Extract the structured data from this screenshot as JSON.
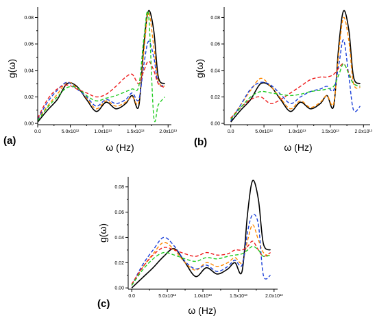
{
  "chart_data": [
    {
      "type": "line",
      "panel_label": "(a)",
      "xlabel": "ω (Hz)",
      "ylabel": "g(ω)",
      "xlim": [
        0,
        20500000000000.0
      ],
      "ylim": [
        -0.001,
        0.088
      ],
      "x_ticks": [
        {
          "value": 0,
          "label": "0.0"
        },
        {
          "value": 5000000000000.0,
          "label": "5.0x10¹²"
        },
        {
          "value": 10000000000000.0,
          "label": "1.0x10¹³"
        },
        {
          "value": 15000000000000.0,
          "label": "1.5x10¹³"
        },
        {
          "value": 20000000000000.0,
          "label": "2.0x10¹³"
        }
      ],
      "y_ticks": [
        {
          "value": 0,
          "label": "0.00"
        },
        {
          "value": 0.02,
          "label": "0.02"
        },
        {
          "value": 0.04,
          "label": "0.04"
        },
        {
          "value": 0.06,
          "label": "0.06"
        },
        {
          "value": 0.08,
          "label": "0.08"
        }
      ],
      "grid": false,
      "series": [
        {
          "color": "#000000",
          "dash": "solid",
          "x": [
            0,
            1500000000000.0,
            3000000000000.0,
            4500000000000.0,
            6000000000000.0,
            7500000000000.0,
            9000000000000.0,
            10500000000000.0,
            12000000000000.0,
            13500000000000.0,
            14500000000000.0,
            15500000000000.0,
            16300000000000.0,
            17000000000000.0,
            17800000000000.0,
            18500000000000.0,
            19500000000000.0
          ],
          "y": [
            0.001,
            0.01,
            0.018,
            0.03,
            0.028,
            0.018,
            0.009,
            0.016,
            0.011,
            0.015,
            0.021,
            0.013,
            0.06,
            0.085,
            0.07,
            0.035,
            0.03
          ]
        },
        {
          "color": "#ff8800",
          "dash": "dashed",
          "x": [
            0,
            1500000000000.0,
            3000000000000.0,
            4500000000000.0,
            6000000000000.0,
            7500000000000.0,
            9000000000000.0,
            10500000000000.0,
            12000000000000.0,
            13500000000000.0,
            14500000000000.0,
            15500000000000.0,
            16300000000000.0,
            17000000000000.0,
            17800000000000.0,
            18500000000000.0,
            19500000000000.0
          ],
          "y": [
            0.003,
            0.013,
            0.022,
            0.031,
            0.027,
            0.019,
            0.011,
            0.017,
            0.013,
            0.016,
            0.02,
            0.016,
            0.055,
            0.084,
            0.058,
            0.032,
            0.028
          ]
        },
        {
          "color": "#1a3fd9",
          "dash": "dashed",
          "x": [
            0,
            1500000000000.0,
            3000000000000.0,
            4500000000000.0,
            6000000000000.0,
            7500000000000.0,
            9000000000000.0,
            10500000000000.0,
            12000000000000.0,
            13500000000000.0,
            14500000000000.0,
            15500000000000.0,
            16300000000000.0,
            17000000000000.0,
            17800000000000.0,
            18500000000000.0,
            19500000000000.0
          ],
          "y": [
            0.003,
            0.016,
            0.025,
            0.031,
            0.026,
            0.02,
            0.013,
            0.018,
            0.015,
            0.018,
            0.023,
            0.018,
            0.045,
            0.062,
            0.05,
            0.03,
            0.029
          ]
        },
        {
          "color": "#ee1c1c",
          "dash": "dashed",
          "x": [
            0,
            1500000000000.0,
            3000000000000.0,
            4500000000000.0,
            6000000000000.0,
            7500000000000.0,
            9000000000000.0,
            10500000000000.0,
            12000000000000.0,
            13500000000000.0,
            14500000000000.0,
            15500000000000.0,
            16300000000000.0,
            17000000000000.0,
            17800000000000.0,
            18500000000000.0,
            19500000000000.0
          ],
          "y": [
            0.004,
            0.018,
            0.026,
            0.029,
            0.026,
            0.023,
            0.02,
            0.022,
            0.028,
            0.035,
            0.037,
            0.03,
            0.04,
            0.047,
            0.04,
            0.03,
            0.027
          ]
        },
        {
          "color": "#22cc22",
          "dash": "dashed",
          "x": [
            0,
            1500000000000.0,
            3000000000000.0,
            4500000000000.0,
            6000000000000.0,
            7500000000000.0,
            9000000000000.0,
            10500000000000.0,
            12000000000000.0,
            13500000000000.0,
            14500000000000.0,
            15500000000000.0,
            16300000000000.0,
            17000000000000.0,
            17800000000000.0,
            18500000000000.0,
            19500000000000.0
          ],
          "y": [
            0.002,
            0.012,
            0.02,
            0.027,
            0.027,
            0.021,
            0.017,
            0.019,
            0.021,
            0.024,
            0.026,
            0.028,
            0.065,
            0.082,
            0.005,
            0.014,
            0.02
          ]
        }
      ]
    },
    {
      "type": "line",
      "panel_label": "(b)",
      "xlabel": "ω (Hz)",
      "ylabel": "g(ω)",
      "xlim": [
        -1000000000000.0,
        21000000000000.0
      ],
      "ylim": [
        -0.001,
        0.088
      ],
      "x_ticks": [
        {
          "value": 0,
          "label": "0.0"
        },
        {
          "value": 5000000000000.0,
          "label": "5.0x10¹²"
        },
        {
          "value": 10000000000000.0,
          "label": "1.0x10¹³"
        },
        {
          "value": 15000000000000.0,
          "label": "1.5x10¹³"
        },
        {
          "value": 20000000000000.0,
          "label": "2.0x10¹³"
        }
      ],
      "y_ticks": [
        {
          "value": 0,
          "label": "0.00"
        },
        {
          "value": 0.02,
          "label": "0.02"
        },
        {
          "value": 0.04,
          "label": "0.04"
        },
        {
          "value": 0.06,
          "label": "0.06"
        },
        {
          "value": 0.08,
          "label": "0.08"
        }
      ],
      "grid": false,
      "series": [
        {
          "color": "#000000",
          "dash": "solid",
          "x": [
            0,
            1500000000000.0,
            3000000000000.0,
            4500000000000.0,
            6000000000000.0,
            7500000000000.0,
            9000000000000.0,
            10500000000000.0,
            12000000000000.0,
            13500000000000.0,
            14500000000000.0,
            15500000000000.0,
            16300000000000.0,
            17000000000000.0,
            17800000000000.0,
            18500000000000.0,
            19500000000000.0
          ],
          "y": [
            0.001,
            0.01,
            0.018,
            0.03,
            0.028,
            0.018,
            0.009,
            0.016,
            0.011,
            0.015,
            0.021,
            0.013,
            0.06,
            0.085,
            0.07,
            0.035,
            0.03
          ]
        },
        {
          "color": "#ff8800",
          "dash": "dashed",
          "x": [
            0,
            1500000000000.0,
            3000000000000.0,
            4500000000000.0,
            6000000000000.0,
            7500000000000.0,
            9000000000000.0,
            10500000000000.0,
            12000000000000.0,
            13500000000000.0,
            14500000000000.0,
            15500000000000.0,
            16300000000000.0,
            17000000000000.0,
            17800000000000.0,
            18500000000000.0,
            19500000000000.0
          ],
          "y": [
            0.003,
            0.014,
            0.025,
            0.034,
            0.028,
            0.019,
            0.011,
            0.017,
            0.012,
            0.016,
            0.021,
            0.015,
            0.055,
            0.08,
            0.062,
            0.03,
            0.027
          ]
        },
        {
          "color": "#1a3fd9",
          "dash": "dashed",
          "x": [
            0,
            1500000000000.0,
            3000000000000.0,
            4500000000000.0,
            6000000000000.0,
            7500000000000.0,
            9000000000000.0,
            10500000000000.0,
            12000000000000.0,
            13500000000000.0,
            14500000000000.0,
            15500000000000.0,
            16300000000000.0,
            17000000000000.0,
            17800000000000.0,
            18500000000000.0,
            19500000000000.0
          ],
          "y": [
            0.002,
            0.014,
            0.026,
            0.031,
            0.029,
            0.022,
            0.015,
            0.02,
            0.024,
            0.026,
            0.028,
            0.025,
            0.045,
            0.063,
            0.035,
            0.01,
            0.013
          ]
        },
        {
          "color": "#ee1c1c",
          "dash": "dashed",
          "x": [
            0,
            1500000000000.0,
            3000000000000.0,
            4500000000000.0,
            6000000000000.0,
            7500000000000.0,
            9000000000000.0,
            10500000000000.0,
            12000000000000.0,
            13500000000000.0,
            14500000000000.0,
            15500000000000.0,
            16300000000000.0,
            17000000000000.0,
            17800000000000.0,
            18500000000000.0,
            19500000000000.0
          ],
          "y": [
            0.004,
            0.012,
            0.018,
            0.02,
            0.015,
            0.018,
            0.023,
            0.028,
            0.033,
            0.035,
            0.035,
            0.037,
            0.042,
            0.045,
            0.038,
            0.03,
            0.028
          ]
        },
        {
          "color": "#22cc22",
          "dash": "dashed",
          "x": [
            0,
            1500000000000.0,
            3000000000000.0,
            4500000000000.0,
            6000000000000.0,
            7500000000000.0,
            9000000000000.0,
            10500000000000.0,
            12000000000000.0,
            13500000000000.0,
            14500000000000.0,
            15500000000000.0,
            16300000000000.0,
            17000000000000.0,
            17800000000000.0,
            18500000000000.0,
            19500000000000.0
          ],
          "y": [
            0.003,
            0.012,
            0.02,
            0.024,
            0.023,
            0.022,
            0.021,
            0.022,
            0.024,
            0.025,
            0.026,
            0.028,
            0.037,
            0.045,
            0.037,
            0.03,
            0.028
          ]
        }
      ]
    },
    {
      "type": "line",
      "panel_label": "(c)",
      "xlabel": "ω (Hz)",
      "ylabel": "g(ω)",
      "xlim": [
        -500000000000.0,
        20500000000000.0
      ],
      "ylim": [
        -0.001,
        0.088
      ],
      "x_ticks": [
        {
          "value": 0,
          "label": "0.0"
        },
        {
          "value": 5000000000000.0,
          "label": "5.0x10¹²"
        },
        {
          "value": 10000000000000.0,
          "label": "1.0x10¹³"
        },
        {
          "value": 15000000000000.0,
          "label": "1.5x10¹³"
        },
        {
          "value": 20000000000000.0,
          "label": "2.0x10¹³"
        }
      ],
      "y_ticks": [
        {
          "value": 0,
          "label": "0.00"
        },
        {
          "value": 0.02,
          "label": "0.02"
        },
        {
          "value": 0.04,
          "label": "0.04"
        },
        {
          "value": 0.06,
          "label": "0.06"
        },
        {
          "value": 0.08,
          "label": "0.08"
        }
      ],
      "grid": false,
      "series": [
        {
          "color": "#000000",
          "dash": "solid",
          "x": [
            0,
            1500000000000.0,
            3000000000000.0,
            4500000000000.0,
            6000000000000.0,
            7500000000000.0,
            9000000000000.0,
            10500000000000.0,
            12000000000000.0,
            13500000000000.0,
            14500000000000.0,
            15500000000000.0,
            16300000000000.0,
            17000000000000.0,
            17800000000000.0,
            18500000000000.0,
            19500000000000.0
          ],
          "y": [
            0.0,
            0.008,
            0.016,
            0.025,
            0.031,
            0.02,
            0.009,
            0.016,
            0.011,
            0.015,
            0.02,
            0.013,
            0.06,
            0.085,
            0.07,
            0.035,
            0.03
          ]
        },
        {
          "color": "#ff8800",
          "dash": "dashed",
          "x": [
            0,
            1500000000000.0,
            3000000000000.0,
            4500000000000.0,
            6000000000000.0,
            7500000000000.0,
            9000000000000.0,
            10500000000000.0,
            12000000000000.0,
            13500000000000.0,
            14500000000000.0,
            15500000000000.0,
            16300000000000.0,
            17000000000000.0,
            17800000000000.0,
            18500000000000.0,
            19500000000000.0
          ],
          "y": [
            0.002,
            0.016,
            0.027,
            0.036,
            0.03,
            0.02,
            0.014,
            0.02,
            0.017,
            0.02,
            0.024,
            0.02,
            0.038,
            0.05,
            0.038,
            0.028,
            0.025
          ]
        },
        {
          "color": "#1a3fd9",
          "dash": "dashed",
          "x": [
            0,
            1500000000000.0,
            3000000000000.0,
            4500000000000.0,
            6000000000000.0,
            7500000000000.0,
            9000000000000.0,
            10500000000000.0,
            12000000000000.0,
            13500000000000.0,
            14500000000000.0,
            15500000000000.0,
            16300000000000.0,
            17000000000000.0,
            17800000000000.0,
            18500000000000.0,
            19500000000000.0
          ],
          "y": [
            0.002,
            0.018,
            0.03,
            0.04,
            0.033,
            0.021,
            0.015,
            0.018,
            0.013,
            0.017,
            0.022,
            0.018,
            0.045,
            0.058,
            0.05,
            0.01,
            0.01
          ]
        },
        {
          "color": "#ee1c1c",
          "dash": "dashed",
          "x": [
            0,
            1500000000000.0,
            3000000000000.0,
            4500000000000.0,
            6000000000000.0,
            7500000000000.0,
            9000000000000.0,
            10500000000000.0,
            12000000000000.0,
            13500000000000.0,
            14500000000000.0,
            15500000000000.0,
            16300000000000.0,
            17000000000000.0,
            17800000000000.0,
            18500000000000.0,
            19500000000000.0
          ],
          "y": [
            0.003,
            0.016,
            0.026,
            0.032,
            0.03,
            0.027,
            0.025,
            0.028,
            0.026,
            0.027,
            0.03,
            0.03,
            0.033,
            0.037,
            0.03,
            0.025,
            0.028
          ]
        },
        {
          "color": "#22cc22",
          "dash": "dashed",
          "x": [
            0,
            1500000000000.0,
            3000000000000.0,
            4500000000000.0,
            6000000000000.0,
            7500000000000.0,
            9000000000000.0,
            10500000000000.0,
            12000000000000.0,
            13500000000000.0,
            14500000000000.0,
            15500000000000.0,
            16300000000000.0,
            17000000000000.0,
            17800000000000.0,
            18500000000000.0,
            19500000000000.0
          ],
          "y": [
            0.002,
            0.014,
            0.023,
            0.028,
            0.026,
            0.023,
            0.021,
            0.024,
            0.023,
            0.025,
            0.026,
            0.027,
            0.03,
            0.033,
            0.03,
            0.025,
            0.026
          ]
        }
      ]
    }
  ]
}
